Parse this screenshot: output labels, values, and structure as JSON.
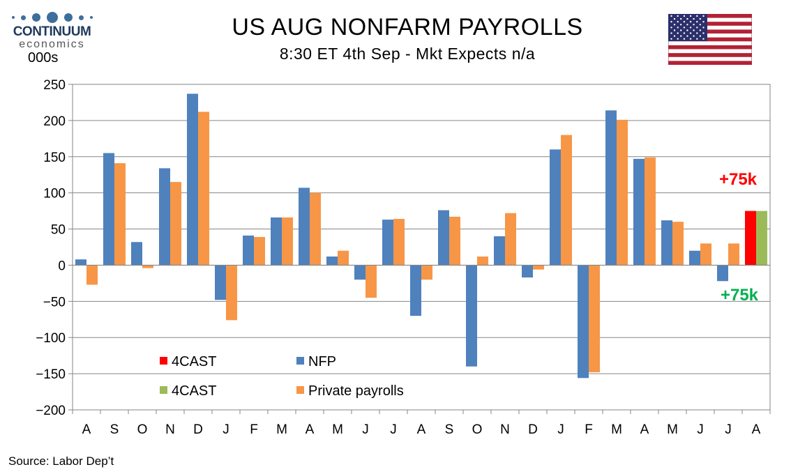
{
  "logo": {
    "name": "CONTINUUM",
    "sub": "economics"
  },
  "unit_label": "000s",
  "source": "Source: Labor Dep’t",
  "colors": {
    "nfp": "#4f81bd",
    "private": "#f79646",
    "forecast_nfp": "#ff0000",
    "forecast_private": "#9bbb59",
    "red_label": "#ff0000",
    "green_label": "#00b050"
  },
  "icons": {
    "flag": "us-flag-icon"
  },
  "chart_data": {
    "type": "bar",
    "title": "US AUG NONFARM PAYROLLS",
    "subtitle": "8:30 ET 4th Sep - Mkt Expects n/a",
    "ylabel": "000s",
    "ylim": [
      -200,
      250
    ],
    "yticks": [
      250,
      200,
      150,
      100,
      50,
      0,
      -50,
      -100,
      -150,
      -200
    ],
    "grid": true,
    "categories": [
      "A",
      "S",
      "O",
      "N",
      "D",
      "J",
      "F",
      "M",
      "A",
      "M",
      "J",
      "J",
      "A",
      "S",
      "O",
      "N",
      "D",
      "J",
      "F",
      "M",
      "A",
      "M",
      "J",
      "J",
      "A"
    ],
    "series": [
      {
        "name": "NFP",
        "values": [
          8,
          155,
          32,
          134,
          237,
          -48,
          41,
          66,
          107,
          12,
          -20,
          63,
          -70,
          76,
          -140,
          40,
          -17,
          160,
          -156,
          214,
          147,
          62,
          20,
          -22,
          null
        ]
      },
      {
        "name": "Private payrolls",
        "values": [
          -27,
          141,
          -4,
          115,
          212,
          -76,
          39,
          66,
          100,
          20,
          -45,
          64,
          -20,
          67,
          12,
          72,
          -6,
          180,
          -148,
          201,
          149,
          60,
          30,
          30,
          null
        ]
      },
      {
        "name": "4CAST",
        "values": [
          null,
          null,
          null,
          null,
          null,
          null,
          null,
          null,
          null,
          null,
          null,
          null,
          null,
          null,
          null,
          null,
          null,
          null,
          null,
          null,
          null,
          null,
          null,
          null,
          75
        ]
      },
      {
        "name": "4CAST",
        "values": [
          null,
          null,
          null,
          null,
          null,
          null,
          null,
          null,
          null,
          null,
          null,
          null,
          null,
          null,
          null,
          null,
          null,
          null,
          null,
          null,
          null,
          null,
          null,
          null,
          75
        ]
      }
    ],
    "annotations": [
      {
        "text": "+75k",
        "color": "red"
      },
      {
        "text": "+75k",
        "color": "green"
      }
    ],
    "legend": {
      "placement": "bottom-left"
    }
  }
}
